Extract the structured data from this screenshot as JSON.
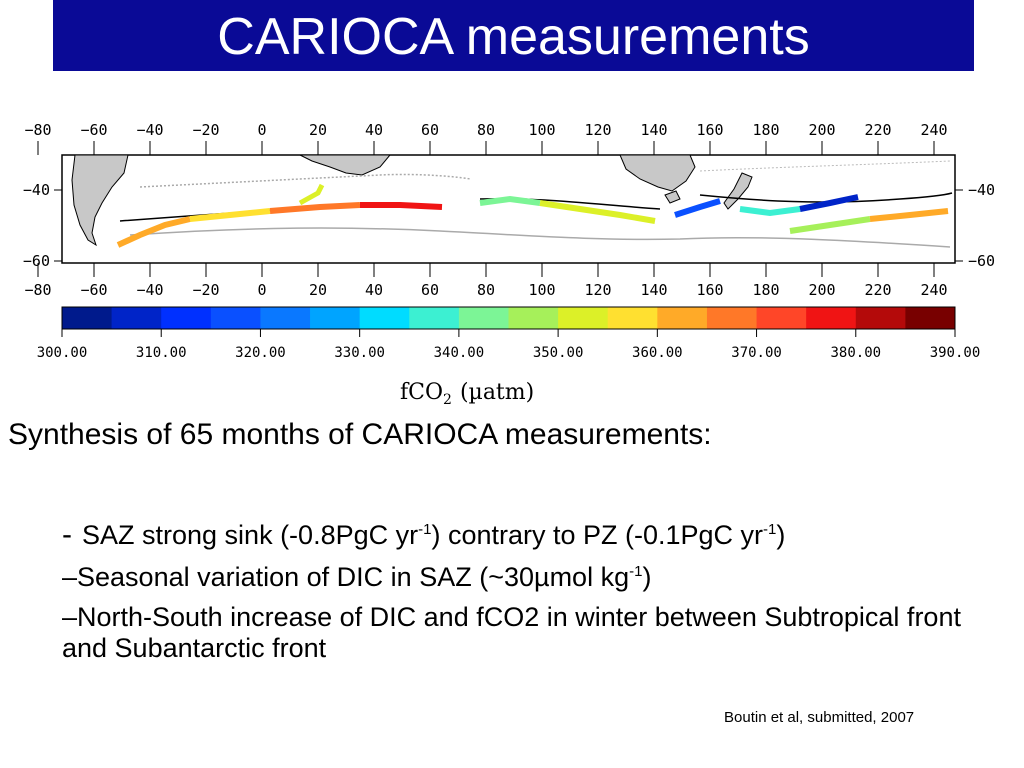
{
  "title": "CARIOCA measurements",
  "map": {
    "lon_ticks": [
      "−80",
      "−60",
      "−40",
      "−20",
      "0",
      "20",
      "40",
      "60",
      "80",
      "100",
      "120",
      "140",
      "160",
      "180",
      "200",
      "220",
      "240"
    ],
    "lat_ticks": [
      "−40",
      "−60"
    ],
    "colorbar_labels": [
      "300.00",
      "310.00",
      "320.00",
      "330.00",
      "340.00",
      "350.00",
      "360.00",
      "370.00",
      "380.00",
      "390.00"
    ],
    "colorbar_colors": [
      "#001a8c",
      "#0024c8",
      "#0030ff",
      "#0a50ff",
      "#0a78ff",
      "#00a4ff",
      "#00dcff",
      "#3cf0d2",
      "#7cf596",
      "#a6f05a",
      "#dcf028",
      "#ffe030",
      "#ffaa28",
      "#ff7828",
      "#ff4628",
      "#f01414",
      "#b40a0a",
      "#780000"
    ],
    "colorbar_title": "fCO",
    "colorbar_title_sub": "2",
    "colorbar_unit": "(µatm)"
  },
  "text": {
    "lead": "Synthesis of 65 months of CARIOCA measurements:",
    "b1_dash": "-",
    "b1_a": "SAZ strong sink (-0.8PgC yr",
    "b1_sup1": "-1",
    "b1_b": ") contrary to PZ (-0.1PgC yr",
    "b1_sup2": "-1",
    "b1_c": ")",
    "b2_a": "–Seasonal variation of DIC in SAZ (~30",
    "b2_mu": "µ",
    "b2_b": "mol kg",
    "b2_sup": "-1",
    "b2_c": ")",
    "b3": "–North-South increase of DIC and fCO2 in winter between Subtropical front and Subantarctic front",
    "citation": "Boutin et al, submitted, 2007"
  }
}
